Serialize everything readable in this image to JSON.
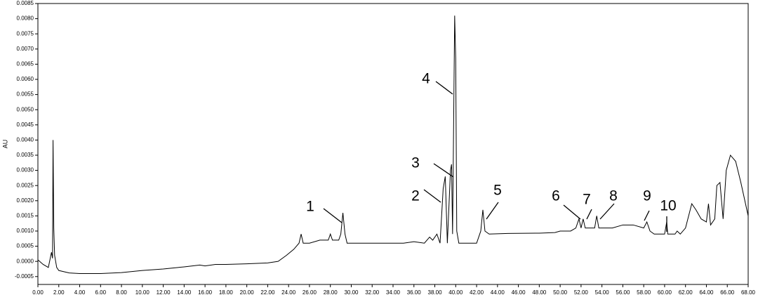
{
  "chart_data": {
    "type": "line",
    "y_label": "AU",
    "peak_labels": [
      "1",
      "2",
      "3",
      "4",
      "5",
      "6",
      "7",
      "8",
      "9",
      "10"
    ],
    "xlim": [
      0,
      68
    ],
    "ylim": [
      -0.00076,
      0.0085
    ],
    "xticks": [
      {
        "value": 0,
        "label": "0.00"
      },
      {
        "value": 2,
        "label": "2.00"
      },
      {
        "value": 4,
        "label": "4.00"
      },
      {
        "value": 6,
        "label": "6.00"
      },
      {
        "value": 8,
        "label": "8.00"
      },
      {
        "value": 10,
        "label": "10.00"
      },
      {
        "value": 12,
        "label": "12.00"
      },
      {
        "value": 14,
        "label": "14.00"
      },
      {
        "value": 16,
        "label": "16.00"
      },
      {
        "value": 18,
        "label": "18.00"
      },
      {
        "value": 20,
        "label": "20.00"
      },
      {
        "value": 22,
        "label": "22.00"
      },
      {
        "value": 24,
        "label": "24.00"
      },
      {
        "value": 26,
        "label": "26.00"
      },
      {
        "value": 28,
        "label": "28.00"
      },
      {
        "value": 30,
        "label": "30.00"
      },
      {
        "value": 32,
        "label": "32.00"
      },
      {
        "value": 34,
        "label": "34.00"
      },
      {
        "value": 36,
        "label": "36.00"
      },
      {
        "value": 38,
        "label": "38.00"
      },
      {
        "value": 40,
        "label": "40.00"
      },
      {
        "value": 42,
        "label": "42.00"
      },
      {
        "value": 44,
        "label": "44.00"
      },
      {
        "value": 46,
        "label": "46.00"
      },
      {
        "value": 48,
        "label": "48.00"
      },
      {
        "value": 50,
        "label": "50.00"
      },
      {
        "value": 52,
        "label": "52.00"
      },
      {
        "value": 54,
        "label": "54.00"
      },
      {
        "value": 56,
        "label": "56.00"
      },
      {
        "value": 58,
        "label": "58.00"
      },
      {
        "value": 60,
        "label": "60.00"
      },
      {
        "value": 62,
        "label": "62.00"
      },
      {
        "value": 64,
        "label": "64.00"
      },
      {
        "value": 66,
        "label": "66.00"
      },
      {
        "value": 68,
        "label": "68.00"
      }
    ],
    "yticks": [
      {
        "value": -0.0005,
        "label": "-0.0005"
      },
      {
        "value": 0,
        "label": "0.0000"
      },
      {
        "value": 0.0005,
        "label": "0.0005"
      },
      {
        "value": 0.001,
        "label": "0.0010"
      },
      {
        "value": 0.0015,
        "label": "0.0015"
      },
      {
        "value": 0.002,
        "label": "0.0020"
      },
      {
        "value": 0.0025,
        "label": "0.0025"
      },
      {
        "value": 0.003,
        "label": "0.0030"
      },
      {
        "value": 0.0035,
        "label": "0.0035"
      },
      {
        "value": 0.004,
        "label": "0.0040"
      },
      {
        "value": 0.0045,
        "label": "0.0045"
      },
      {
        "value": 0.005,
        "label": "0.0050"
      },
      {
        "value": 0.0055,
        "label": "0.0055"
      },
      {
        "value": 0.006,
        "label": "0.0060"
      },
      {
        "value": 0.0065,
        "label": "0.0065"
      },
      {
        "value": 0.007,
        "label": "0.0070"
      },
      {
        "value": 0.0075,
        "label": "0.0075"
      },
      {
        "value": 0.008,
        "label": "0.0080"
      },
      {
        "value": 0.0085,
        "label": "0.0085"
      }
    ],
    "series": [
      {
        "color": "#000000",
        "x": [
          0,
          0.5,
          1,
          1.3,
          1.4,
          1.45,
          1.52,
          1.6,
          1.8,
          2,
          3,
          4,
          6,
          8,
          10,
          12,
          14,
          15.5,
          16,
          17,
          18,
          20,
          22,
          23,
          23.8,
          24.5,
          25,
          25.2,
          25.4,
          26,
          27,
          27.8,
          28,
          28.2,
          28.8,
          29,
          29.2,
          29.4,
          29.6,
          31,
          33,
          35,
          36,
          37,
          37.5,
          37.8,
          38.2,
          38.5,
          38.8,
          39,
          39.2,
          39.5,
          39.6,
          39.7,
          39.9,
          40,
          40.1,
          40.3,
          41,
          42,
          42.4,
          42.6,
          42.8,
          43.2,
          45,
          48,
          49.5,
          50,
          50.5,
          51,
          51.5,
          51.8,
          52,
          52.2,
          52.4,
          53.3,
          53.5,
          53.7,
          55,
          56,
          57,
          58,
          58.3,
          58.6,
          59,
          60,
          60.2,
          60.3,
          61,
          61.2,
          61.5,
          62,
          62.6,
          63,
          63.5,
          64,
          64.2,
          64.4,
          64.8,
          65,
          65.3,
          65.6,
          65.9,
          66.3,
          66.8,
          67.3,
          68
        ],
        "values": [
          5e-05,
          -0.0001,
          -0.0002,
          0.0003,
          0.0001,
          0.004,
          0.0011,
          0.0002,
          -0.0002,
          -0.0003,
          -0.00038,
          -0.0004,
          -0.0004,
          -0.00037,
          -0.0003,
          -0.00025,
          -0.00018,
          -0.00012,
          -0.00015,
          -0.0001,
          -0.0001,
          -8e-05,
          -5e-05,
          0,
          0.0002,
          0.0004,
          0.0006,
          0.0009,
          0.0006,
          0.0006,
          0.0007,
          0.0007,
          0.0009,
          0.0007,
          0.0007,
          0.0009,
          0.0016,
          0.0009,
          0.0006,
          0.0006,
          0.0006,
          0.0006,
          0.00065,
          0.0006,
          0.0008,
          0.0007,
          0.0009,
          0.0006,
          0.0024,
          0.0028,
          0.0006,
          0.003,
          0.0032,
          0.0009,
          0.0081,
          0.0067,
          0.001,
          0.0006,
          0.0006,
          0.0006,
          0.001,
          0.0017,
          0.001,
          0.0009,
          0.00092,
          0.00093,
          0.00095,
          0.001,
          0.001,
          0.001,
          0.0011,
          0.0014,
          0.0011,
          0.0014,
          0.0011,
          0.0011,
          0.0015,
          0.0011,
          0.0011,
          0.0012,
          0.0012,
          0.0011,
          0.0013,
          0.001,
          0.0009,
          0.0009,
          0.0013,
          0.0009,
          0.0009,
          0.001,
          0.0009,
          0.0011,
          0.0019,
          0.0017,
          0.0014,
          0.0013,
          0.0019,
          0.0012,
          0.0014,
          0.0025,
          0.0026,
          0.0014,
          0.003,
          0.0035,
          0.0033,
          0.0026,
          0.0015
        ]
      }
    ]
  }
}
